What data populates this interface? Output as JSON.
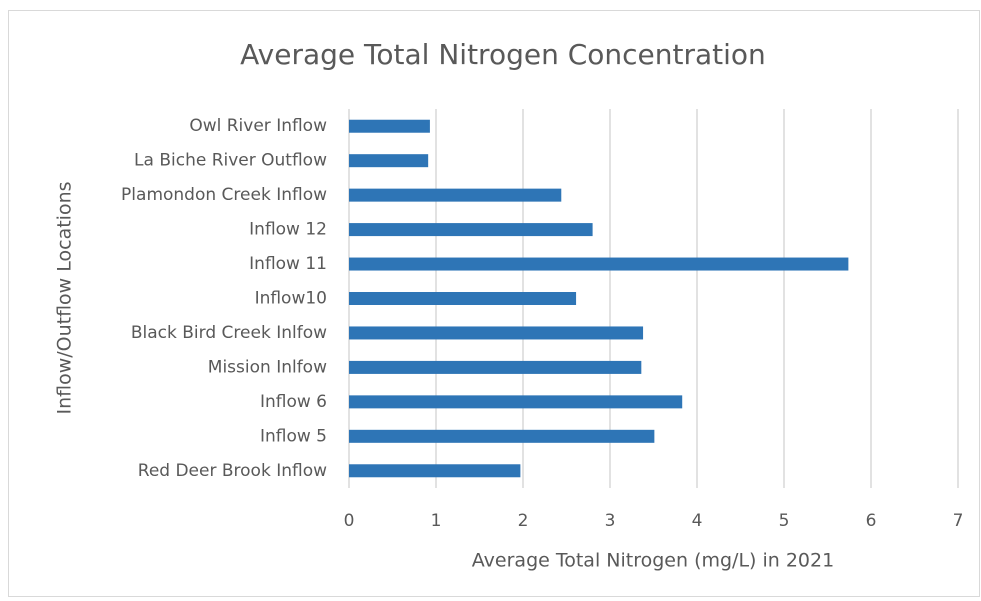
{
  "chart_data": {
    "type": "bar",
    "orientation": "horizontal",
    "title": "Average Total Nitrogen Concentration",
    "x_label": "Average Total Nitrogen (mg/L) in 2021",
    "y_label": "Inflow/Outflow Locations",
    "categories": [
      "Red Deer Brook Inflow",
      "Inflow 5",
      "Inflow 6",
      "Mission Inlfow",
      "Black Bird Creek Inlfow",
      "Inflow10",
      "Inflow 11",
      "Inflow 12",
      "Plamondon Creek Inflow",
      "La Biche River Outflow",
      "Owl River Inflow"
    ],
    "values": [
      1.97,
      3.51,
      3.83,
      3.36,
      3.38,
      2.61,
      5.74,
      2.8,
      2.44,
      0.91,
      0.93
    ],
    "color": "#2e75b6",
    "xlim": [
      0,
      7
    ],
    "xticks": [
      0,
      1,
      2,
      3,
      4,
      5,
      6,
      7
    ],
    "grid": true
  }
}
